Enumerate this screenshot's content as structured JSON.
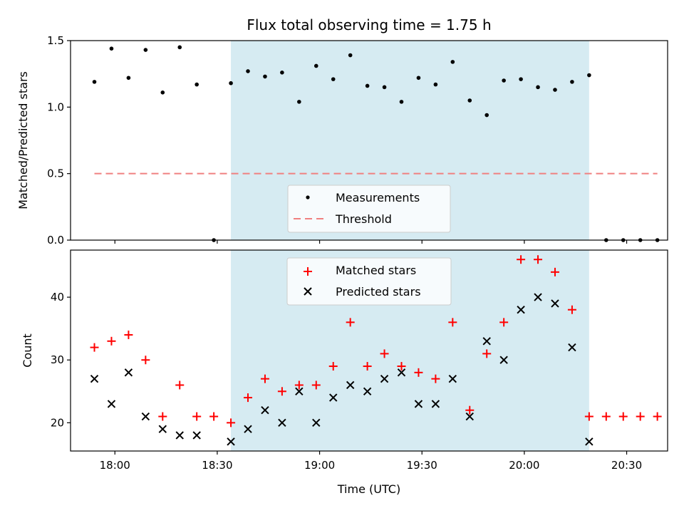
{
  "chart_data": [
    {
      "type": "scatter",
      "title": "Flux total observing time = 1.75 h",
      "xlabel": "",
      "ylabel": "Matched/Predicted stars",
      "xlim": [
        "17:47",
        "20:42"
      ],
      "ylim": [
        0,
        1.5
      ],
      "yticks": [
        0.0,
        0.5,
        1.0,
        1.5
      ],
      "ytick_labels": [
        "0.0",
        "0.5",
        "1.0",
        "1.5"
      ],
      "grid": false,
      "legend_position": "lower-center",
      "shaded_interval": [
        "18:34",
        "20:19"
      ],
      "series": [
        {
          "name": "Measurements",
          "marker": "dot",
          "color": "#000000",
          "x": [
            "17:54",
            "17:59",
            "18:04",
            "18:09",
            "18:14",
            "18:19",
            "18:24",
            "18:29",
            "18:34",
            "18:39",
            "18:44",
            "18:49",
            "18:54",
            "18:59",
            "19:04",
            "19:09",
            "19:14",
            "19:19",
            "19:24",
            "19:29",
            "19:34",
            "19:39",
            "19:44",
            "19:49",
            "19:54",
            "19:59",
            "20:04",
            "20:09",
            "20:14",
            "20:19",
            "20:24",
            "20:29",
            "20:34",
            "20:39"
          ],
          "y": [
            1.19,
            1.44,
            1.22,
            1.43,
            1.11,
            1.45,
            1.17,
            0.0,
            1.18,
            1.27,
            1.23,
            1.26,
            1.04,
            1.31,
            1.21,
            1.39,
            1.16,
            1.15,
            1.04,
            1.22,
            1.17,
            1.34,
            1.05,
            0.94,
            1.2,
            1.21,
            1.15,
            1.13,
            1.19,
            1.24,
            0.0,
            0.0,
            0.0,
            0.0
          ]
        },
        {
          "name": "Threshold",
          "marker": "dashed-line",
          "color": "#f08080",
          "x": [
            "17:54",
            "20:39"
          ],
          "y": [
            0.5,
            0.5
          ]
        }
      ]
    },
    {
      "type": "scatter",
      "title": "",
      "xlabel": "Time (UTC)",
      "ylabel": "Count",
      "xlim": [
        "17:47",
        "20:42"
      ],
      "ylim": [
        15.5,
        47.5
      ],
      "yticks": [
        20,
        30,
        40
      ],
      "ytick_labels": [
        "20",
        "30",
        "40"
      ],
      "xticks": [
        "18:00",
        "18:30",
        "19:00",
        "19:30",
        "20:00",
        "20:30"
      ],
      "xtick_labels": [
        "18:00",
        "18:30",
        "19:00",
        "19:30",
        "20:00",
        "20:30"
      ],
      "grid": false,
      "legend_position": "upper-center",
      "shaded_interval": [
        "18:34",
        "20:19"
      ],
      "series": [
        {
          "name": "Matched stars",
          "marker": "plus",
          "color": "#ff0000",
          "x": [
            "17:54",
            "17:59",
            "18:04",
            "18:09",
            "18:14",
            "18:19",
            "18:24",
            "18:29",
            "18:34",
            "18:39",
            "18:44",
            "18:49",
            "18:54",
            "18:59",
            "19:04",
            "19:09",
            "19:14",
            "19:19",
            "19:24",
            "19:29",
            "19:34",
            "19:39",
            "19:44",
            "19:49",
            "19:54",
            "19:59",
            "20:04",
            "20:09",
            "20:14",
            "20:19",
            "20:24",
            "20:29",
            "20:34",
            "20:39"
          ],
          "y": [
            32,
            33,
            34,
            30,
            21,
            26,
            21,
            21,
            20,
            24,
            27,
            25,
            26,
            26,
            29,
            36,
            29,
            31,
            29,
            28,
            27,
            36,
            22,
            31,
            36,
            46,
            46,
            44,
            38,
            21,
            21,
            21,
            21,
            21
          ]
        },
        {
          "name": "Predicted stars",
          "marker": "x",
          "color": "#000000",
          "x": [
            "17:54",
            "17:59",
            "18:04",
            "18:09",
            "18:14",
            "18:19",
            "18:24",
            "18:34",
            "18:39",
            "18:44",
            "18:49",
            "18:54",
            "18:59",
            "19:04",
            "19:09",
            "19:14",
            "19:19",
            "19:24",
            "19:29",
            "19:34",
            "19:39",
            "19:44",
            "19:49",
            "19:54",
            "19:59",
            "20:04",
            "20:09",
            "20:14",
            "20:19"
          ],
          "y": [
            27,
            23,
            28,
            21,
            19,
            18,
            18,
            17,
            19,
            22,
            20,
            25,
            20,
            24,
            26,
            25,
            27,
            28,
            23,
            23,
            27,
            21,
            33,
            30,
            38,
            40,
            39,
            32,
            17
          ]
        }
      ]
    }
  ]
}
